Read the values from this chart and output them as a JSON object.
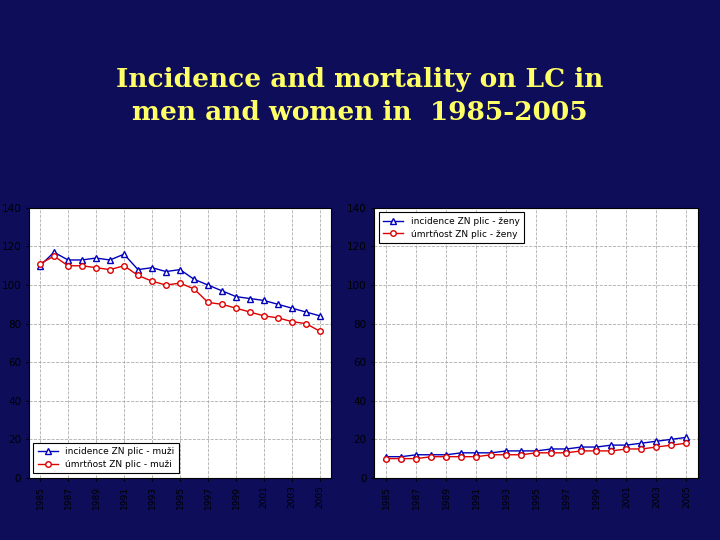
{
  "title_line1": "Incidence and mortality on LC in",
  "title_line2": "men and women in  1985-2005",
  "title_color": "#FFFF66",
  "title_bg_color": "#0d0d5a",
  "bottom_bg_color": "#3333bb",
  "years": [
    1985,
    1986,
    1987,
    1988,
    1989,
    1990,
    1991,
    1992,
    1993,
    1994,
    1995,
    1996,
    1997,
    1998,
    1999,
    2000,
    2001,
    2002,
    2003,
    2004,
    2005
  ],
  "xtick_years": [
    1985,
    1987,
    1989,
    1991,
    1993,
    1995,
    1997,
    1999,
    2001,
    2003,
    2005
  ],
  "men_incidence": [
    110,
    117,
    113,
    113,
    114,
    113,
    116,
    108,
    109,
    107,
    108,
    103,
    100,
    97,
    94,
    93,
    92,
    90,
    88,
    86,
    84
  ],
  "men_mortality": [
    111,
    115,
    110,
    110,
    109,
    108,
    110,
    105,
    102,
    100,
    101,
    98,
    91,
    90,
    88,
    86,
    84,
    83,
    81,
    80,
    76
  ],
  "women_incidence": [
    11,
    11,
    12,
    12,
    12,
    13,
    13,
    13,
    14,
    14,
    14,
    15,
    15,
    16,
    16,
    17,
    17,
    18,
    19,
    20,
    21
  ],
  "women_mortality": [
    10,
    10,
    10,
    11,
    11,
    11,
    11,
    12,
    12,
    12,
    13,
    13,
    13,
    14,
    14,
    14,
    15,
    15,
    16,
    17,
    18
  ],
  "men_legend1": "incidence ZN plic - muži",
  "men_legend2": "úmrtňost ZN plic - muži",
  "women_legend1": "incidence ZN plic - ženy",
  "women_legend2": "úmrtňost ZN plic - ženy",
  "ylim": [
    0,
    140
  ],
  "yticks": [
    0,
    20,
    40,
    60,
    80,
    100,
    120,
    140
  ],
  "line_blue": "#0000bb",
  "line_red": "#dd0000",
  "chart_bg": "#ffffff",
  "grid_color": "#999999"
}
